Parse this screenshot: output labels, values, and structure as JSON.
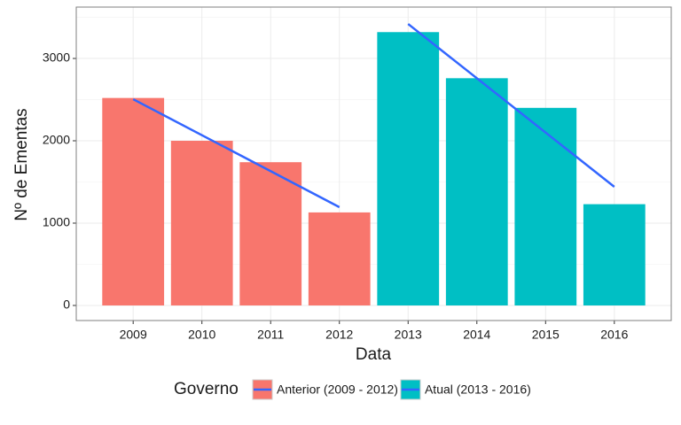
{
  "chart_data": {
    "type": "bar",
    "x_label": "Data",
    "y_label": "Nº de Ementas",
    "categories": [
      "2009",
      "2010",
      "2011",
      "2012",
      "2013",
      "2014",
      "2015",
      "2016"
    ],
    "legend_title": "Governo",
    "series": [
      {
        "name": "Anterior (2009 - 2012)",
        "color": "#F8766D",
        "values": [
          2520,
          2000,
          1740,
          1130,
          null,
          null,
          null,
          null
        ],
        "trend": {
          "categories": [
            "2009",
            "2012"
          ],
          "values": [
            2505,
            1194
          ]
        }
      },
      {
        "name": "Atual (2013 - 2016)",
        "color": "#00BFC4",
        "values": [
          null,
          null,
          null,
          null,
          3320,
          2760,
          2400,
          1230
        ],
        "trend": {
          "categories": [
            "2013",
            "2016"
          ],
          "values": [
            3419,
            1441
          ]
        }
      }
    ],
    "trend_color": "#3366FF",
    "ylim": [
      -183,
      3624
    ],
    "yticks": [
      0,
      1000,
      2000,
      3000
    ],
    "y_minor_ticks": [
      500,
      1500,
      2500,
      3500
    ],
    "grid": true,
    "legend_position": "bottom"
  }
}
